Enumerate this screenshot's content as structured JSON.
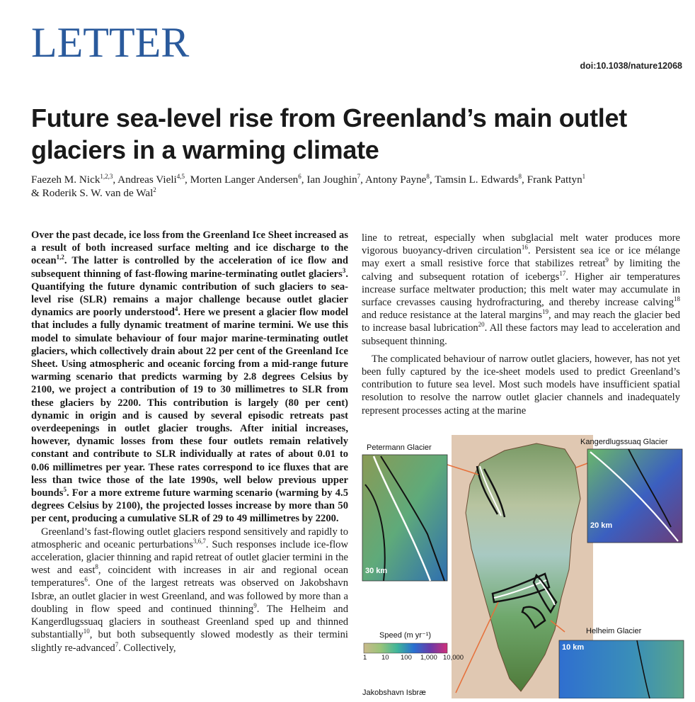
{
  "header": {
    "section": "LETTER",
    "doi": "doi:10.1038/nature12068"
  },
  "title": "Future sea-level rise from Greenland’s main outlet glaciers in a warming climate",
  "authors": {
    "a1": "Faezeh M. Nick",
    "a1s": "1,2,3",
    "a2": ", Andreas Vieli",
    "a2s": "4,5",
    "a3": ", Morten Langer Andersen",
    "a3s": "6",
    "a4": ", Ian Joughin",
    "a4s": "7",
    "a5": ", Antony Payne",
    "a5s": "8",
    "a6": ", Tamsin L. Edwards",
    "a6s": "8",
    "a7": ", Frank Pattyn",
    "a7s": "1",
    "a8": "& Roderik S. W. van de Wal",
    "a8s": "2"
  },
  "abstract": {
    "t1": "Over the past decade, ice loss from the Greenland Ice Sheet increased as a result of both increased surface melting and ice discharge to the ocean",
    "r1": "1,2",
    "t2": ". The latter is controlled by the acceleration of ice flow and subsequent thinning of fast-flowing marine-terminating outlet glaciers",
    "r2": "3",
    "t3": ". Quantifying the future dynamic contribution of such glaciers to sea-level rise (SLR) remains a major challenge because outlet glacier dynamics are poorly understood",
    "r3": "4",
    "t4": ". Here we present a glacier flow model that includes a fully dynamic treatment of marine termini. We use this model to simulate behaviour of four major marine-terminating outlet glaciers, which collectively drain about 22 per cent of the Greenland Ice Sheet. Using atmospheric and oceanic forcing from a mid-range future warming scenario that predicts warming by 2.8 degrees Celsius by 2100, we project a contribution of 19 to 30 millimetres to SLR from these glaciers by 2200. This contribution is largely (80 per cent) dynamic in origin and is caused by several episodic retreats past overdeepenings in outlet glacier troughs. After initial increases, however, dynamic losses from these four outlets remain relatively constant and contribute to SLR individually at rates of about 0.01 to 0.06 millimetres per year. These rates correspond to ice fluxes that are less than twice those of the late 1990s, well below previous upper bounds",
    "r4": "5",
    "t5": ". For a more extreme future warming scenario (warming by 4.5 degrees Celsius by 2100), the projected losses increase by more than 50 per cent, producing a cumulative SLR of 29 to 49 millimetres by 2200."
  },
  "body_left": {
    "t1": "Greenland’s fast-flowing outlet glaciers respond sensitively and rapidly to atmospheric and oceanic perturbations",
    "r1": "3,6,7",
    "t2": ". Such responses include ice-flow acceleration, glacier thinning and rapid retreat of outlet glacier termini in the west and east",
    "r2": "8",
    "t3": ", coincident with increases in air and regional ocean temperatures",
    "r3": "6",
    "t4": ". One of the largest retreats was observed on Jakobshavn Isbræ, an outlet glacier in west Greenland, and was followed by more than a doubling in flow speed and continued thinning",
    "r4": "9",
    "t5": ". The Helheim and Kangerdlugssuaq glaciers in southeast Greenland sped up and thinned substantially",
    "r5": "10",
    "t6": ", but both subsequently slowed modestly as their termini slightly re-advanced",
    "r6": "7",
    "t7": ". Collectively,"
  },
  "body_right": {
    "t1": "line to retreat, especially when subglacial melt water produces more vigorous buoyancy-driven circulation",
    "r1": "16",
    "t2": ". Persistent sea ice or ice mélange may exert a small resistive force that stabilizes retreat",
    "r2": "9",
    "t3": " by limiting the calving and subsequent rotation of icebergs",
    "r3": "17",
    "t4": ". Higher air temperatures increase surface meltwater production; this melt water may accumulate in surface crevasses causing hydrofracturing, and thereby increase calving",
    "r4": "18",
    "t5": " and reduce resistance at the lateral margins",
    "r5": "19",
    "t6": ", and may reach the glacier bed to increase basal lubrication",
    "r6": "20",
    "t7": ". All these factors may lead to acceleration and subsequent thinning.",
    "p2": "The complicated behaviour of narrow outlet glaciers, however, has not yet been fully captured by the ice-sheet models used to predict Greenland’s contribution to future sea level. Most such models have insufficient spatial resolution to resolve the narrow outlet glacier channels and inadequately represent processes acting at the marine"
  },
  "figure": {
    "petermann": "Petermann Glacier",
    "kanger": "Kangerdlugssuaq Glacier",
    "helheim": "Helheim Glacier",
    "jakobshavn": "Jakobshavn Isbræ",
    "scale_30": "30 km",
    "scale_20": "20 km",
    "scale_10": "10 km",
    "speed_label": "Speed (m yr⁻¹)",
    "ticks": [
      "1",
      "10",
      "100",
      "1,000",
      "10,000"
    ]
  }
}
